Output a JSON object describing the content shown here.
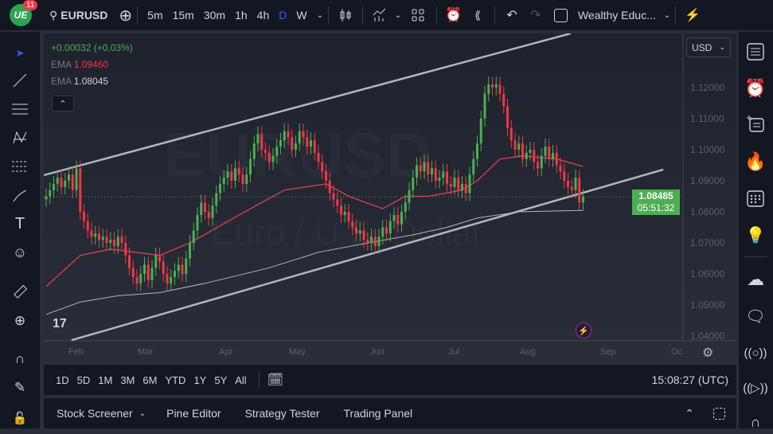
{
  "header": {
    "badge_count": "11",
    "symbol": "EURUSD",
    "intervals": [
      "5m",
      "15m",
      "30m",
      "1h",
      "4h",
      "D",
      "W"
    ],
    "active_interval": "D",
    "layout_name": "Wealthy Educ..."
  },
  "legend": {
    "change": "+0.00032 (+0.03%)",
    "ema1_label": "EMA",
    "ema1_value": "1.09460",
    "ema2_label": "EMA",
    "ema2_value": "1.08045"
  },
  "watermark": {
    "symbol": "EURUSD",
    "description": "Euro / U.S. Dollar"
  },
  "currency": "USD",
  "price_tag": {
    "price": "1.08485",
    "countdown": "05:51:32"
  },
  "time_ranges": [
    "1D",
    "5D",
    "1M",
    "3M",
    "6M",
    "YTD",
    "1Y",
    "5Y",
    "All"
  ],
  "clock": "15:08:27 (UTC)",
  "bottom_tabs": [
    "Stock Screener",
    "Pine Editor",
    "Strategy Tester",
    "Trading Panel"
  ],
  "colors": {
    "up": "#4caf50",
    "down": "#f23645",
    "ema1": "#e0414f",
    "ema2": "#b2b5be",
    "accent": "#2962ff",
    "background": "#131722"
  },
  "chart_data": {
    "type": "candlestick",
    "price_ticks": [
      "1.12000",
      "1.11000",
      "1.10000",
      "1.09000",
      "1.08000",
      "1.07000",
      "1.06000",
      "1.05000",
      "1.04000"
    ],
    "month_ticks": [
      "Feb",
      "Mar",
      "Apr",
      "May",
      "Jun",
      "Jul",
      "Aug",
      "Sep",
      "Oc"
    ],
    "ylim": [
      1.0385,
      1.1374
    ],
    "closes": [
      1.085,
      1.087,
      1.089,
      1.091,
      1.088,
      1.09,
      1.092,
      1.087,
      1.094,
      1.08,
      1.077,
      1.074,
      1.072,
      1.073,
      1.071,
      1.072,
      1.07,
      1.071,
      1.069,
      1.072,
      1.07,
      1.066,
      1.062,
      1.059,
      1.057,
      1.06,
      1.063,
      1.058,
      1.062,
      1.066,
      1.064,
      1.06,
      1.057,
      1.059,
      1.061,
      1.063,
      1.06,
      1.065,
      1.07,
      1.074,
      1.079,
      1.083,
      1.08,
      1.078,
      1.082,
      1.086,
      1.089,
      1.091,
      1.093,
      1.09,
      1.094,
      1.092,
      1.089,
      1.092,
      1.097,
      1.102,
      1.105,
      1.1,
      1.099,
      1.096,
      1.098,
      1.101,
      1.103,
      1.106,
      1.104,
      1.1,
      1.102,
      1.106,
      1.104,
      1.101,
      1.103,
      1.099,
      1.096,
      1.093,
      1.09,
      1.086,
      1.084,
      1.082,
      1.079,
      1.08,
      1.077,
      1.075,
      1.073,
      1.074,
      1.071,
      1.07,
      1.072,
      1.069,
      1.072,
      1.075,
      1.073,
      1.077,
      1.079,
      1.076,
      1.08,
      1.083,
      1.087,
      1.091,
      1.095,
      1.093,
      1.096,
      1.092,
      1.094,
      1.09,
      1.091,
      1.093,
      1.089,
      1.088,
      1.091,
      1.087,
      1.089,
      1.086,
      1.092,
      1.097,
      1.102,
      1.11,
      1.118,
      1.121,
      1.12,
      1.121,
      1.118,
      1.114,
      1.107,
      1.103,
      1.1,
      1.102,
      1.097,
      1.099,
      1.1,
      1.096,
      1.094,
      1.098,
      1.101,
      1.097,
      1.099,
      1.095,
      1.093,
      1.09,
      1.088,
      1.087,
      1.091,
      1.083,
      1.08485
    ],
    "ema_fast": [
      [
        0,
        1.056
      ],
      [
        9,
        1.066
      ],
      [
        17,
        1.068
      ],
      [
        30,
        1.066
      ],
      [
        38,
        1.07
      ],
      [
        51,
        1.079
      ],
      [
        63,
        1.087
      ],
      [
        74,
        1.089
      ],
      [
        80,
        1.085
      ],
      [
        89,
        1.081
      ],
      [
        95,
        1.085
      ],
      [
        101,
        1.085
      ],
      [
        110,
        1.087
      ],
      [
        114,
        1.09
      ],
      [
        120,
        1.097
      ],
      [
        126,
        1.098
      ],
      [
        135,
        1.097
      ],
      [
        142,
        1.0946
      ]
    ],
    "ema_slow": [
      [
        0,
        1.047
      ],
      [
        9,
        1.051
      ],
      [
        19,
        1.053
      ],
      [
        30,
        1.054
      ],
      [
        42,
        1.057
      ],
      [
        59,
        1.062
      ],
      [
        72,
        1.067
      ],
      [
        85,
        1.07
      ],
      [
        97,
        1.0726
      ],
      [
        106,
        1.075
      ],
      [
        114,
        1.078
      ],
      [
        125,
        1.08
      ],
      [
        135,
        1.0803
      ],
      [
        142,
        1.08045
      ]
    ],
    "trendlines": [
      [
        [
          -0.6,
          1.0918
        ],
        [
          138.7,
          1.1374
        ]
      ],
      [
        [
          6.7,
          1.0387
        ],
        [
          163.2,
          1.0936
        ]
      ]
    ]
  }
}
